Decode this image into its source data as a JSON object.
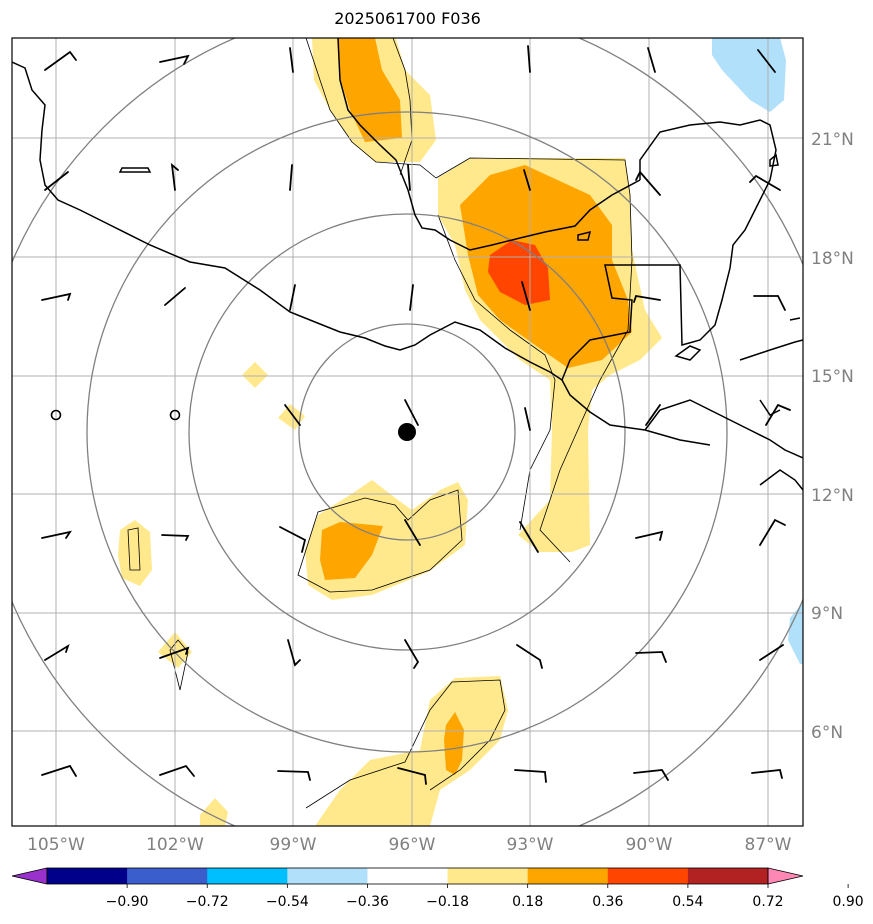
{
  "title": "2025061700 F036",
  "lat_labels": [
    "21°N",
    "18°N",
    "15°N",
    "12°N",
    "9°N",
    "6°N"
  ],
  "lon_labels": [
    "105°W",
    "102°W",
    "99°W",
    "96°W",
    "93°W",
    "90°W",
    "87°W"
  ],
  "center": {
    "lon": -96,
    "lat": 13.6
  },
  "colorbar": {
    "ticks": [
      "−0.90",
      "−0.72",
      "−0.54",
      "−0.36",
      "−0.18",
      "0.18",
      "0.36",
      "0.54",
      "0.72",
      "0.90"
    ],
    "colors": [
      "#9932cc",
      "#00008b",
      "#3a5fcd",
      "#00bfff",
      "#b0e0fa",
      "#ffffff",
      "#ffe98c",
      "#ffa500",
      "#ff4500",
      "#b22222",
      "#ff87b4"
    ]
  },
  "colors": {
    "grid": "#b0b0b0",
    "range_ring": "#808080",
    "coast": "#000000"
  }
}
